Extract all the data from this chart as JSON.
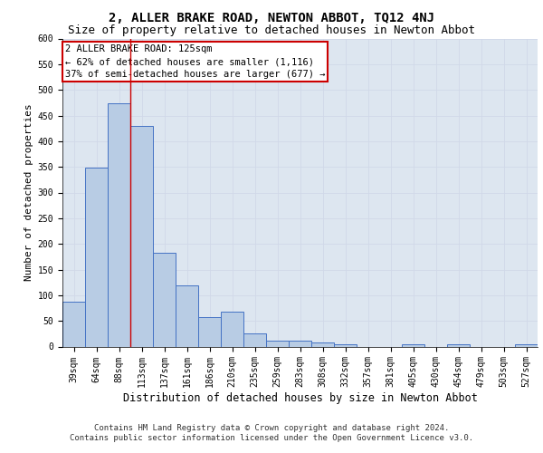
{
  "title": "2, ALLER BRAKE ROAD, NEWTON ABBOT, TQ12 4NJ",
  "subtitle": "Size of property relative to detached houses in Newton Abbot",
  "xlabel": "Distribution of detached houses by size in Newton Abbot",
  "ylabel": "Number of detached properties",
  "categories": [
    "39sqm",
    "64sqm",
    "88sqm",
    "113sqm",
    "137sqm",
    "161sqm",
    "186sqm",
    "210sqm",
    "235sqm",
    "259sqm",
    "283sqm",
    "308sqm",
    "332sqm",
    "357sqm",
    "381sqm",
    "405sqm",
    "430sqm",
    "454sqm",
    "479sqm",
    "503sqm",
    "527sqm"
  ],
  "values": [
    88,
    348,
    473,
    430,
    182,
    120,
    57,
    68,
    25,
    11,
    11,
    8,
    4,
    0,
    0,
    5,
    0,
    5,
    0,
    0,
    5
  ],
  "bar_color": "#b8cce4",
  "bar_edge_color": "#4472c4",
  "grid_color": "#d0d8e8",
  "background_color": "#dde6f0",
  "annotation_box_color": "#ffffff",
  "annotation_border_color": "#cc0000",
  "annotation_line1": "2 ALLER BRAKE ROAD: 125sqm",
  "annotation_line2": "← 62% of detached houses are smaller (1,116)",
  "annotation_line3": "37% of semi-detached houses are larger (677) →",
  "vline_x": 2.5,
  "vline_color": "#cc0000",
  "ylim": [
    0,
    600
  ],
  "yticks": [
    0,
    50,
    100,
    150,
    200,
    250,
    300,
    350,
    400,
    450,
    500,
    550,
    600
  ],
  "footnote1": "Contains HM Land Registry data © Crown copyright and database right 2024.",
  "footnote2": "Contains public sector information licensed under the Open Government Licence v3.0.",
  "title_fontsize": 10,
  "subtitle_fontsize": 9,
  "ylabel_fontsize": 8,
  "xlabel_fontsize": 8.5,
  "tick_fontsize": 7,
  "annotation_fontsize": 7.5,
  "footnote_fontsize": 6.5
}
